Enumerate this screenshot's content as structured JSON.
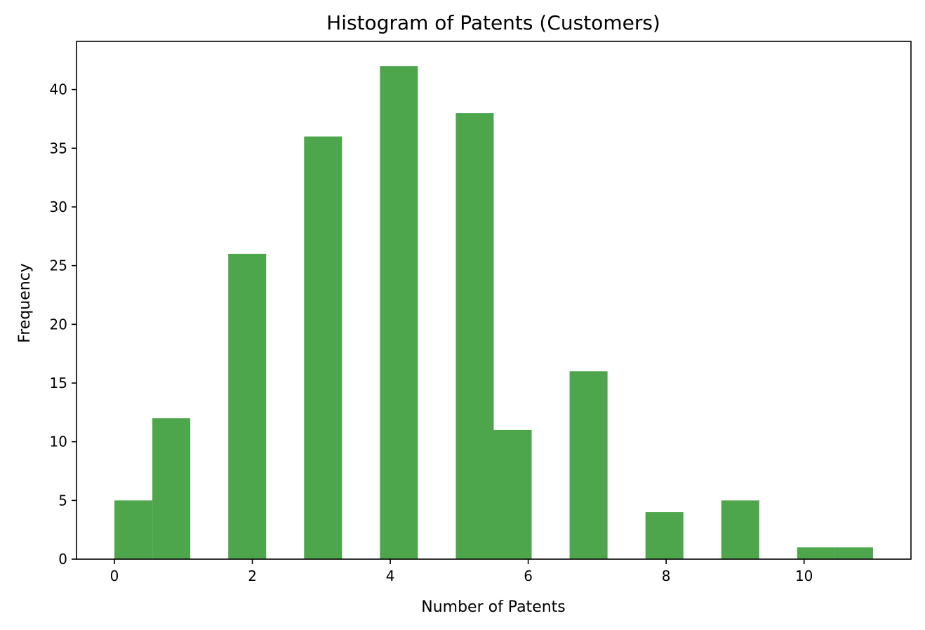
{
  "colors": {
    "bar": "#4ea64c",
    "axis": "#000000",
    "background": "#ffffff"
  },
  "chart_data": {
    "type": "bar",
    "title": "Histogram of Patents (Customers)",
    "xlabel": "Number of Patents",
    "ylabel": "Frequency",
    "xlim": [
      -0.55,
      11.55
    ],
    "ylim": [
      0,
      44.1
    ],
    "x_ticks": [
      0,
      2,
      4,
      6,
      8,
      10
    ],
    "y_ticks": [
      0,
      5,
      10,
      15,
      20,
      25,
      30,
      35,
      40
    ],
    "bins": [
      {
        "start": 0.0,
        "end": 0.55,
        "count": 5
      },
      {
        "start": 0.55,
        "end": 1.1,
        "count": 12
      },
      {
        "start": 1.1,
        "end": 1.65,
        "count": 0
      },
      {
        "start": 1.65,
        "end": 2.2,
        "count": 26
      },
      {
        "start": 2.2,
        "end": 2.75,
        "count": 0
      },
      {
        "start": 2.75,
        "end": 3.3,
        "count": 36
      },
      {
        "start": 3.3,
        "end": 3.85,
        "count": 0
      },
      {
        "start": 3.85,
        "end": 4.4,
        "count": 42
      },
      {
        "start": 4.4,
        "end": 4.95,
        "count": 0
      },
      {
        "start": 4.95,
        "end": 5.5,
        "count": 38
      },
      {
        "start": 5.5,
        "end": 6.05,
        "count": 11
      },
      {
        "start": 6.05,
        "end": 6.6,
        "count": 0
      },
      {
        "start": 6.6,
        "end": 7.15,
        "count": 16
      },
      {
        "start": 7.15,
        "end": 7.7,
        "count": 0
      },
      {
        "start": 7.7,
        "end": 8.25,
        "count": 4
      },
      {
        "start": 8.25,
        "end": 8.8,
        "count": 0
      },
      {
        "start": 8.8,
        "end": 9.35,
        "count": 5
      },
      {
        "start": 9.35,
        "end": 9.9,
        "count": 0
      },
      {
        "start": 9.9,
        "end": 10.45,
        "count": 1
      },
      {
        "start": 10.45,
        "end": 11.0,
        "count": 1
      }
    ]
  }
}
